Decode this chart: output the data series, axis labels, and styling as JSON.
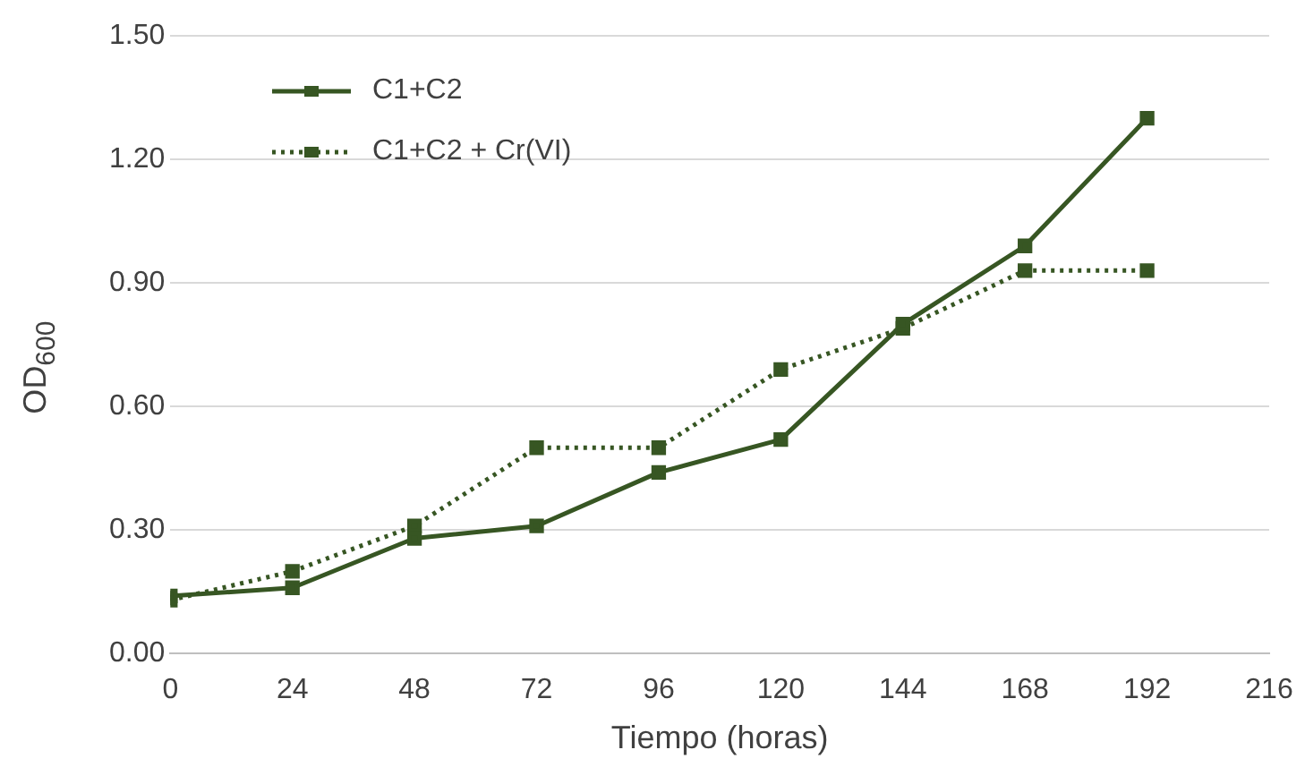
{
  "chart_data": {
    "type": "line",
    "xlabel": "Tiempo (horas)",
    "ylabel": "OD$_{600}$",
    "x": [
      0,
      24,
      48,
      72,
      96,
      120,
      144,
      168,
      192
    ],
    "xlim": [
      0,
      216
    ],
    "xticks": [
      0,
      24,
      48,
      72,
      96,
      120,
      144,
      168,
      192,
      216
    ],
    "ylim": [
      0,
      1.5
    ],
    "yticks": [
      {
        "value": 0,
        "label": "0.00"
      },
      {
        "value": 0.3,
        "label": "0.30"
      },
      {
        "value": 0.6,
        "label": "0.60"
      },
      {
        "value": 0.9,
        "label": "0.90"
      },
      {
        "value": 1.2,
        "label": "1.20"
      },
      {
        "value": 1.5,
        "label": "1.50"
      }
    ],
    "grid": "y",
    "legend": "top left",
    "marker": "square",
    "series": [
      {
        "name": "C1+C2",
        "color": "#375623",
        "line_style": "solid",
        "values": [
          0.14,
          0.16,
          0.28,
          0.31,
          0.44,
          0.52,
          0.8,
          0.99,
          1.3
        ]
      },
      {
        "name": "C1+C2 + Cr(VI)",
        "color": "#375623",
        "line_style": "dotted",
        "values": [
          0.13,
          0.2,
          0.31,
          0.5,
          0.5,
          0.69,
          0.79,
          0.93,
          0.93
        ]
      }
    ]
  }
}
